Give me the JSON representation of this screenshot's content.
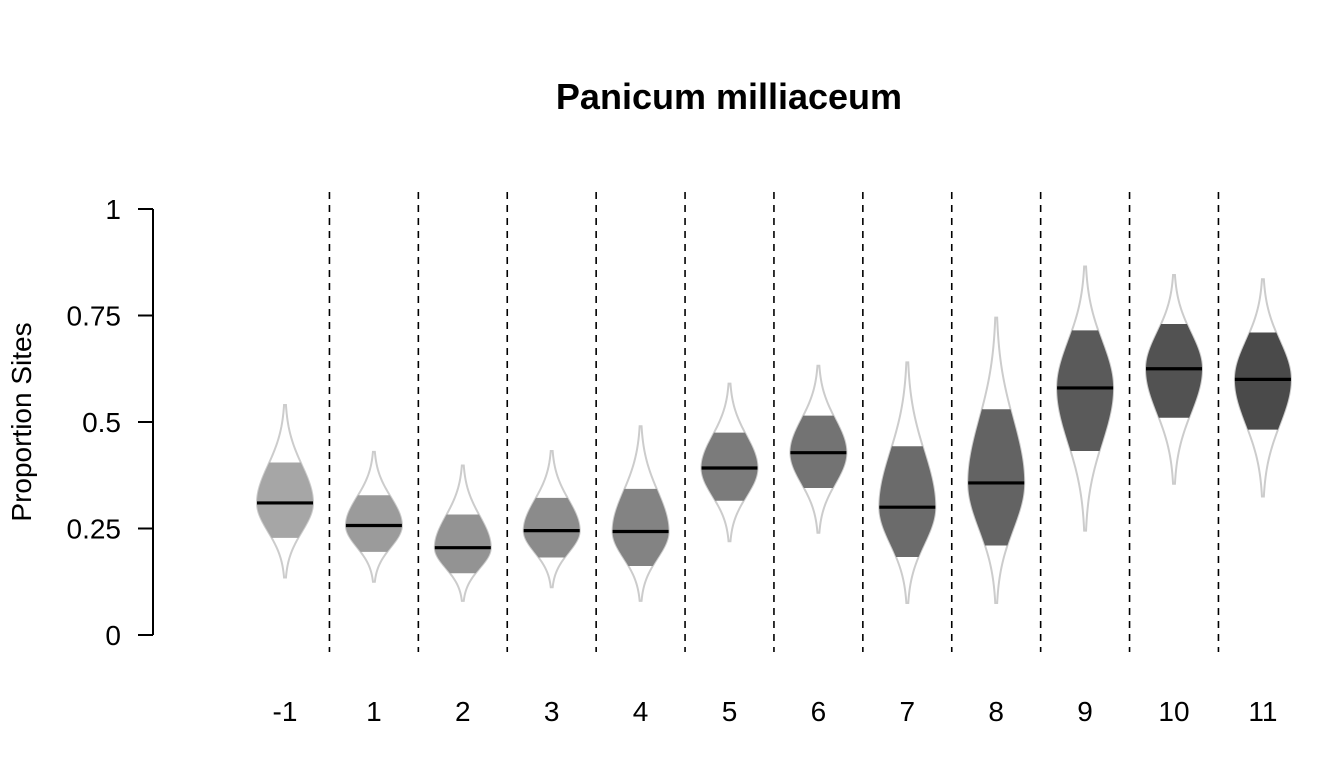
{
  "chart_data": {
    "type": "violin",
    "title": "Panicum milliaceum",
    "xlabel": "",
    "ylabel": "Proportion Sites",
    "ylim": [
      0,
      1
    ],
    "yticks": [
      0,
      0.25,
      0.5,
      0.75,
      1
    ],
    "ytick_labels": [
      "0",
      "0.25",
      "0.5",
      "0.75",
      "1"
    ],
    "categories": [
      "-1",
      "1",
      "2",
      "3",
      "4",
      "5",
      "6",
      "7",
      "8",
      "9",
      "10",
      "11"
    ],
    "medians": [
      0.31,
      0.257,
      0.205,
      0.245,
      0.243,
      0.392,
      0.428,
      0.3,
      0.357,
      0.58,
      0.625,
      0.6
    ],
    "q1": [
      0.228,
      0.195,
      0.145,
      0.182,
      0.162,
      0.315,
      0.345,
      0.183,
      0.21,
      0.432,
      0.51,
      0.482
    ],
    "q3": [
      0.405,
      0.328,
      0.283,
      0.322,
      0.343,
      0.475,
      0.515,
      0.443,
      0.53,
      0.715,
      0.73,
      0.71
    ],
    "min": [
      0.135,
      0.125,
      0.08,
      0.112,
      0.08,
      0.22,
      0.24,
      0.075,
      0.075,
      0.245,
      0.355,
      0.325
    ],
    "max": [
      0.54,
      0.43,
      0.398,
      0.432,
      0.49,
      0.59,
      0.632,
      0.64,
      0.745,
      0.865,
      0.845,
      0.835
    ],
    "fill_colors": [
      "#a6a6a6",
      "#9b9b9b",
      "#939393",
      "#8b8b8b",
      "#838383",
      "#7b7b7b",
      "#737373",
      "#6b6b6b",
      "#636363",
      "#5a5a5a",
      "#525252",
      "#4a4a4a"
    ],
    "outline_color": "#cccccc",
    "median_color": "#000000",
    "separator_style": "dashed"
  }
}
